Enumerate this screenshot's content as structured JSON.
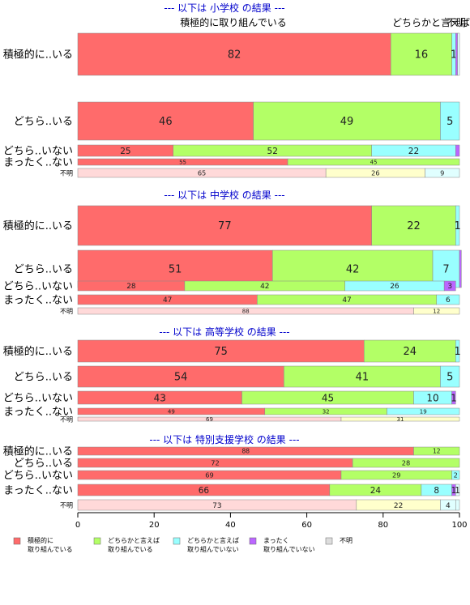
{
  "colors": {
    "positive": "#ff6b6b",
    "somewhat_positive": "#b3ff66",
    "somewhat_negative": "#99ffff",
    "negative": "#bb66ff",
    "unknown_a": "#ffd9d9",
    "unknown_b": "#ffffcc",
    "unknown_c": "#e0ffff",
    "title": "#0000cc",
    "border": "#888888"
  },
  "top_labels": [
    "積極的に取り組んでいる",
    "どちらかと言えば",
    "不明"
  ],
  "legend": [
    {
      "label_line1": "積極的に",
      "label_line2": "取り組んでいる",
      "color": "#ff6b6b"
    },
    {
      "label_line1": "どちらかと言えば",
      "label_line2": "取り組んでいる",
      "color": "#b3ff66"
    },
    {
      "label_line1": "どちらかと言えば",
      "label_line2": "取り組んでいない",
      "color": "#99ffff"
    },
    {
      "label_line1": "まったく",
      "label_line2": "取り組んでいない",
      "color": "#bb66ff"
    },
    {
      "label_line1": "不明",
      "label_line2": "",
      "color": "#dddddd"
    }
  ],
  "chart_data": {
    "type": "bar",
    "orientation": "horizontal",
    "stacked": true,
    "xlim": [
      0,
      100
    ],
    "xticks": [
      0,
      20,
      40,
      60,
      80,
      100
    ],
    "panels": [
      {
        "title": "--- 以下は 小学校 の結果 ---",
        "rows": [
          {
            "label": "積極的に..いる",
            "values": [
              82,
              16,
              1,
              0.5,
              0.5
            ],
            "labels": [
              "82",
              "16",
              "1",
              "",
              ""
            ]
          },
          {
            "label": "どちら..いる",
            "values": [
              46,
              49,
              5,
              0,
              0
            ],
            "labels": [
              "46",
              "49",
              "5",
              "",
              ""
            ]
          },
          {
            "label": "どちら..いない",
            "values": [
              25,
              52,
              22,
              1,
              0
            ],
            "labels": [
              "25",
              "52",
              "22",
              "",
              ""
            ]
          },
          {
            "label": "まったく..ない",
            "values": [
              55,
              45,
              0,
              0,
              0
            ],
            "labels": [
              "55",
              "45",
              "",
              "",
              ""
            ]
          },
          {
            "label": "不明",
            "values": [
              65,
              26,
              9,
              0,
              0
            ],
            "labels": [
              "65",
              "26",
              "9",
              "",
              ""
            ],
            "unknown": true
          }
        ]
      },
      {
        "title": "--- 以下は 中学校 の結果 ---",
        "rows": [
          {
            "label": "積極的に..いる",
            "values": [
              77,
              22,
              1,
              0,
              0
            ],
            "labels": [
              "77",
              "22",
              "1",
              "",
              ""
            ]
          },
          {
            "label": "どちら..いる",
            "values": [
              51,
              42,
              7,
              0.5,
              0
            ],
            "labels": [
              "51",
              "42",
              "7",
              "",
              ""
            ]
          },
          {
            "label": "どちら..いない",
            "values": [
              28,
              42,
              26,
              3,
              0
            ],
            "labels": [
              "28",
              "42",
              "26",
              "3",
              ""
            ]
          },
          {
            "label": "まったく..ない",
            "values": [
              47,
              47,
              6,
              0,
              0
            ],
            "labels": [
              "47",
              "47",
              "6",
              "",
              ""
            ]
          },
          {
            "label": "不明",
            "values": [
              88,
              12,
              0,
              0,
              0
            ],
            "labels": [
              "88",
              "12",
              "",
              "",
              ""
            ],
            "unknown": true
          }
        ]
      },
      {
        "title": "--- 以下は 高等学校 の結果 ---",
        "rows": [
          {
            "label": "積極的に..いる",
            "values": [
              75,
              24,
              1,
              0,
              0
            ],
            "labels": [
              "75",
              "24",
              "1",
              "",
              ""
            ]
          },
          {
            "label": "どちら..いる",
            "values": [
              54,
              41,
              5,
              0,
              0
            ],
            "labels": [
              "54",
              "41",
              "5",
              "",
              ""
            ]
          },
          {
            "label": "どちら..いない",
            "values": [
              43,
              45,
              10,
              1,
              0
            ],
            "labels": [
              "43",
              "45",
              "10",
              "1",
              ""
            ]
          },
          {
            "label": "まったく..ない",
            "values": [
              49,
              32,
              19,
              0,
              0
            ],
            "labels": [
              "49",
              "32",
              "19",
              "",
              ""
            ]
          },
          {
            "label": "不明",
            "values": [
              69,
              31,
              0,
              0,
              0
            ],
            "labels": [
              "69",
              "31",
              "",
              "",
              ""
            ],
            "unknown": true
          }
        ]
      },
      {
        "title": "--- 以下は 特別支援学校 の結果 ---",
        "rows": [
          {
            "label": "積極的に..いる",
            "values": [
              88,
              12,
              0,
              0,
              0
            ],
            "labels": [
              "88",
              "12",
              "",
              "",
              ""
            ]
          },
          {
            "label": "どちら..いる",
            "values": [
              72,
              28,
              0,
              0,
              0
            ],
            "labels": [
              "72",
              "28",
              "",
              "",
              ""
            ]
          },
          {
            "label": "どちら..いない",
            "values": [
              69,
              29,
              2,
              0,
              0
            ],
            "labels": [
              "69",
              "29",
              "2",
              "",
              ""
            ]
          },
          {
            "label": "まったく..ない",
            "values": [
              66,
              24,
              8,
              1,
              1
            ],
            "labels": [
              "66",
              "24",
              "8",
              "1",
              "1"
            ]
          },
          {
            "label": "不明",
            "values": [
              73,
              22,
              4,
              0,
              1
            ],
            "labels": [
              "73",
              "22",
              "4",
              "",
              ""
            ],
            "unknown": true
          }
        ]
      }
    ]
  }
}
